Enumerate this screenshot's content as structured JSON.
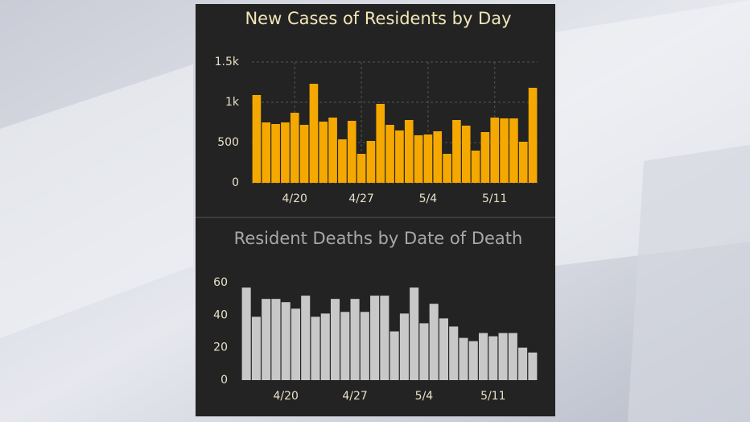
{
  "chart_data": [
    {
      "type": "bar",
      "title": "New Cases of Residents by Day",
      "categories": [
        null,
        null,
        null,
        null,
        "4/20",
        null,
        null,
        null,
        null,
        null,
        null,
        "4/27",
        null,
        null,
        null,
        null,
        null,
        null,
        "5/4",
        null,
        null,
        null,
        null,
        null,
        null,
        "5/11",
        null,
        null,
        null,
        null
      ],
      "values": [
        1090,
        750,
        730,
        750,
        870,
        720,
        1230,
        760,
        810,
        540,
        770,
        360,
        520,
        980,
        720,
        650,
        780,
        590,
        600,
        640,
        360,
        780,
        710,
        400,
        630,
        810,
        800,
        800,
        510,
        1180
      ],
      "color": "#f5a800",
      "ylim": [
        0,
        1500
      ],
      "yticks": [
        0,
        500,
        {
          "value": 1000,
          "label": "1k"
        },
        {
          "value": 1500,
          "label": "1.5k"
        }
      ],
      "grid": true
    },
    {
      "type": "bar",
      "title": "Resident Deaths by Date of Death",
      "categories": [
        null,
        null,
        null,
        null,
        "4/20",
        null,
        null,
        null,
        null,
        null,
        null,
        "4/27",
        null,
        null,
        null,
        null,
        null,
        null,
        "5/4",
        null,
        null,
        null,
        null,
        null,
        null,
        "5/11",
        null,
        null,
        null,
        null
      ],
      "values": [
        57,
        39,
        50,
        50,
        48,
        44,
        52,
        39,
        41,
        50,
        42,
        50,
        42,
        52,
        52,
        30,
        41,
        57,
        35,
        47,
        38,
        33,
        26,
        24,
        29,
        27,
        29,
        29,
        20,
        17
      ],
      "color": "#c8c8c8",
      "ylim": [
        0,
        60
      ],
      "yticks": [
        0,
        20,
        40,
        60
      ],
      "grid": false
    }
  ]
}
